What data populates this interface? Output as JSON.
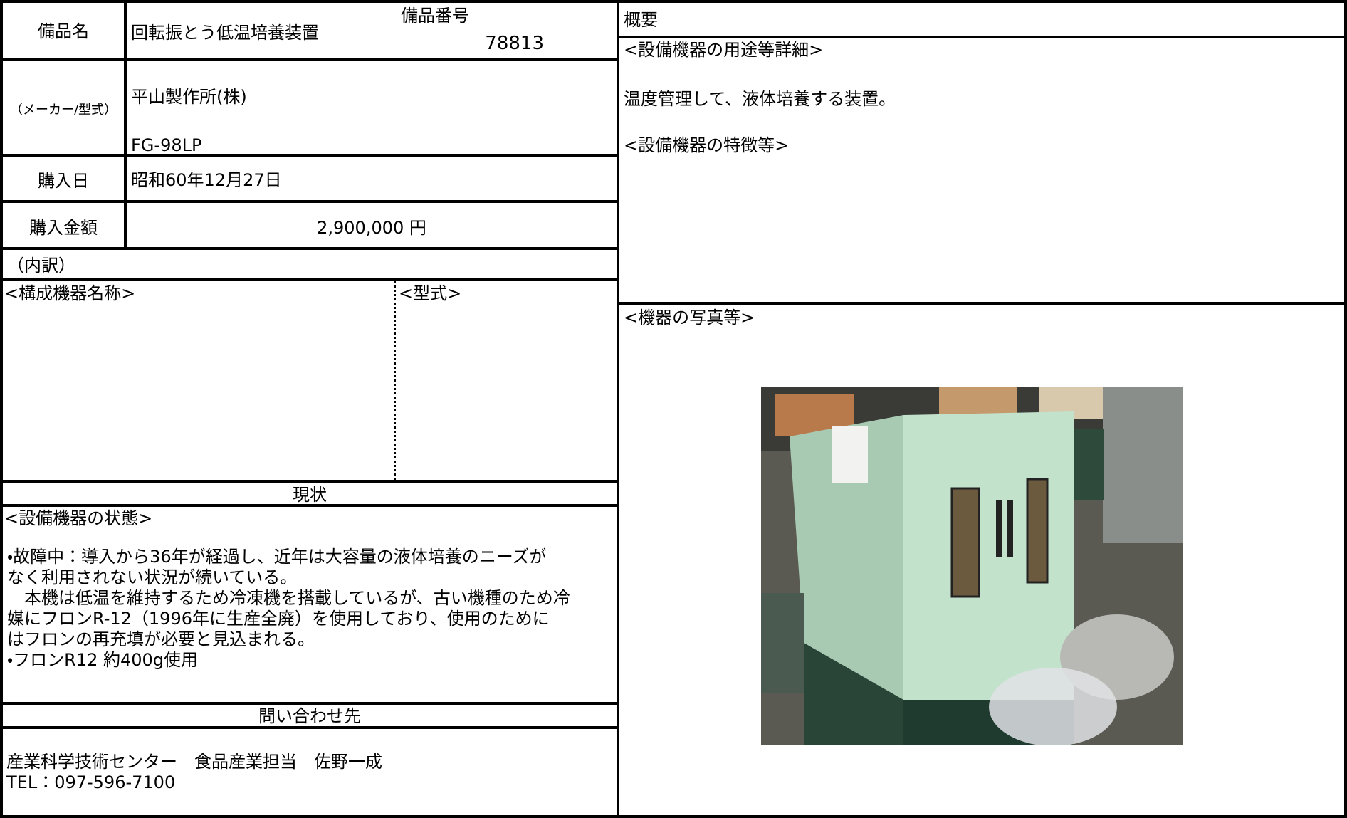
{
  "item_name": {
    "label": "備品名",
    "value": "回転振とう低温培養装置"
  },
  "item_number": {
    "label": "備品番号",
    "value": "78813"
  },
  "maker": {
    "label": "（メーカー/型式）",
    "maker": "平山製作所(株)",
    "model": "FG-98LP"
  },
  "purchase_date": {
    "label": "購入日",
    "value": "昭和60年12月27日"
  },
  "purchase_amount": {
    "label": "購入金額",
    "value": "2,900,000 円"
  },
  "breakdown": {
    "label": "（内訳）",
    "component_header": "<構成機器名称>",
    "model_header": "<型式>"
  },
  "status": {
    "title": "現状",
    "heading": "<設備機器の状態>",
    "lines": [
      "・故障中：導入から36年が経過し、近年は大容量の液体培養のニーズが",
      "なく利用されない状況が続いている。",
      "　本機は低温を維持するため冷凍機を搭載しているが、古い機種のため冷",
      "媒にフロンR-12（1996年に生産全廃）を使用しており、使用のために",
      "はフロンの再充填が必要と見込まれる。",
      "・フロンR12 約400g使用"
    ]
  },
  "contact": {
    "title": "問い合わせ先",
    "lines": [
      "産業科学技術センター　食品産業担当　佐野一成",
      "TEL：097-596-7100"
    ]
  },
  "overview": {
    "title": "概要",
    "usage_heading": "<設備機器の用途等詳細>",
    "usage": "温度管理して、液体培養する装置。",
    "features_heading": "<設備機器の特徴等>",
    "photo_heading": "<機器の写真等>"
  }
}
